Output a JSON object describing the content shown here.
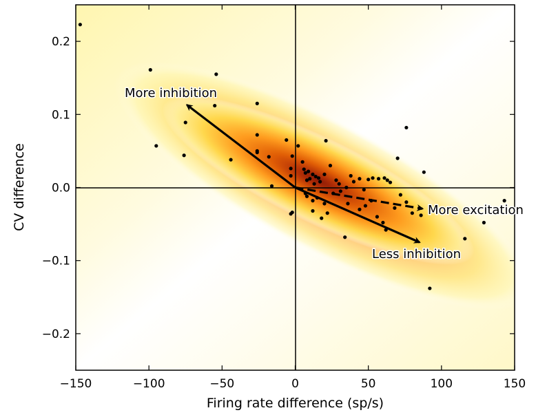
{
  "chart_data": {
    "type": "scatter",
    "xlabel": "Firing rate difference (sp/s)",
    "ylabel": "CV difference",
    "xlim": [
      -150,
      150
    ],
    "ylim": [
      -0.25,
      0.25
    ],
    "xticks": [
      -150,
      -100,
      -50,
      0,
      50,
      100,
      150
    ],
    "xtick_labels": [
      "−150",
      "−100",
      "−50",
      "0",
      "50",
      "100",
      "150"
    ],
    "yticks": [
      -0.2,
      -0.1,
      0.0,
      0.1,
      0.2
    ],
    "ytick_labels": [
      "−0.2",
      "−0.1",
      "0.0",
      "0.1",
      "0.2"
    ],
    "grid": false,
    "background": "density heatmap (yellow-orange-dark red), strongest near the origin along the negative diagonal",
    "colors": {
      "density_low": "#ffffff",
      "density_mid": "#ffb020",
      "density_high": "#8a1500",
      "points": "#000000"
    },
    "points": [
      [
        -147,
        0.223
      ],
      [
        -99,
        0.161
      ],
      [
        -54,
        0.155
      ],
      [
        -95,
        0.057
      ],
      [
        -76,
        0.044
      ],
      [
        -75,
        0.089
      ],
      [
        -55,
        0.112
      ],
      [
        -26,
        0.115
      ],
      [
        -26,
        0.072
      ],
      [
        -26,
        0.05
      ],
      [
        -26,
        0.048
      ],
      [
        -18,
        0.042
      ],
      [
        -44,
        0.038
      ],
      [
        -16,
        0.002
      ],
      [
        -6,
        0.065
      ],
      [
        -2,
        0.043
      ],
      [
        -3,
        0.026
      ],
      [
        -3,
        0.016
      ],
      [
        -2,
        -0.034
      ],
      [
        -3,
        -0.036
      ],
      [
        2,
        0.057
      ],
      [
        5,
        0.035
      ],
      [
        6,
        0.025
      ],
      [
        7,
        0.02
      ],
      [
        8,
        0.01
      ],
      [
        10,
        0.012
      ],
      [
        9,
        0.022
      ],
      [
        12,
        0.018
      ],
      [
        14,
        0.015
      ],
      [
        16,
        0.013
      ],
      [
        13,
        0.005
      ],
      [
        17,
        0.008
      ],
      [
        20,
        0.018
      ],
      [
        24,
        0.03
      ],
      [
        28,
        0.01
      ],
      [
        21,
        0.064
      ],
      [
        30,
        0.005
      ],
      [
        31,
        -0.005
      ],
      [
        35,
        0.0
      ],
      [
        38,
        0.016
      ],
      [
        40,
        0.008
      ],
      [
        44,
        0.012
      ],
      [
        47,
        -0.003
      ],
      [
        50,
        0.011
      ],
      [
        53,
        0.013
      ],
      [
        57,
        0.012
      ],
      [
        61,
        0.013
      ],
      [
        63,
        0.01
      ],
      [
        65,
        0.007
      ],
      [
        70,
        0.04
      ],
      [
        76,
        0.082
      ],
      [
        88,
        0.021
      ],
      [
        8,
        -0.012
      ],
      [
        12,
        -0.018
      ],
      [
        15,
        -0.014
      ],
      [
        20,
        -0.022
      ],
      [
        22,
        -0.035
      ],
      [
        18,
        -0.042
      ],
      [
        12,
        -0.032
      ],
      [
        7,
        -0.008
      ],
      [
        26,
        -0.008
      ],
      [
        34,
        -0.068
      ],
      [
        36,
        -0.022
      ],
      [
        60,
        -0.048
      ],
      [
        62,
        -0.058
      ],
      [
        68,
        -0.028
      ],
      [
        76,
        -0.02
      ],
      [
        80,
        -0.035
      ],
      [
        86,
        -0.038
      ],
      [
        92,
        -0.138
      ],
      [
        116,
        -0.07
      ],
      [
        129,
        -0.048
      ],
      [
        143,
        -0.018
      ],
      [
        44,
        -0.03
      ],
      [
        48,
        -0.025
      ],
      [
        52,
        -0.018
      ],
      [
        56,
        -0.04
      ],
      [
        72,
        -0.01
      ]
    ],
    "arrows": [
      {
        "label": "More inhibition",
        "from": [
          0,
          0
        ],
        "to": [
          -74,
          0.113
        ],
        "style": "solid"
      },
      {
        "label": "Less inhibition",
        "from": [
          0,
          0
        ],
        "to": [
          85,
          -0.075
        ],
        "style": "solid"
      },
      {
        "label": "More excitation",
        "from": [
          0,
          0
        ],
        "to": [
          87,
          -0.029
        ],
        "style": "dashed"
      }
    ]
  }
}
